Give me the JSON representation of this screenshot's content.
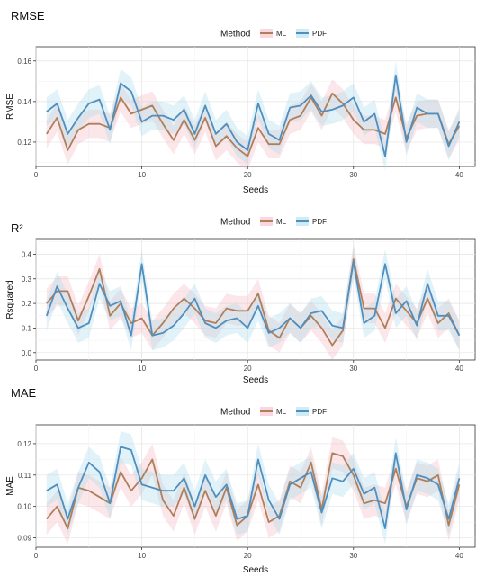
{
  "colors": {
    "ML": "#b07f5a",
    "PDF": "#4f8fbf",
    "ML_band": "#f4b7c4",
    "PDF_band": "#a8dceb"
  },
  "chart_data": [
    {
      "type": "line",
      "title": "RMSE",
      "xlabel": "Seeds",
      "ylabel": "RMSE",
      "legend_title": "Method",
      "legend_position": "top",
      "grid": true,
      "xlim": [
        0,
        41.5
      ],
      "ylim": [
        0.108,
        0.167
      ],
      "x_ticks": [
        0,
        10,
        20,
        30,
        40
      ],
      "y_ticks": [
        0.12,
        0.14,
        0.16
      ],
      "y_tick_labels": [
        "0.12",
        "0.14",
        "0.16"
      ],
      "x": [
        1,
        2,
        3,
        4,
        5,
        6,
        7,
        8,
        9,
        10,
        11,
        12,
        13,
        14,
        15,
        16,
        17,
        18,
        19,
        20,
        21,
        22,
        23,
        24,
        25,
        26,
        27,
        28,
        29,
        30,
        31,
        32,
        33,
        34,
        35,
        36,
        37,
        38,
        39,
        40
      ],
      "band_width": 0.007,
      "series": [
        {
          "name": "ML",
          "values": [
            0.124,
            0.132,
            0.116,
            0.126,
            0.129,
            0.129,
            0.127,
            0.142,
            0.134,
            0.136,
            0.138,
            0.129,
            0.121,
            0.131,
            0.121,
            0.132,
            0.118,
            0.123,
            0.117,
            0.113,
            0.127,
            0.119,
            0.119,
            0.131,
            0.133,
            0.142,
            0.133,
            0.144,
            0.139,
            0.131,
            0.126,
            0.126,
            0.124,
            0.142,
            0.122,
            0.133,
            0.134,
            0.134,
            0.119,
            0.128
          ]
        },
        {
          "name": "PDF",
          "values": [
            0.135,
            0.139,
            0.124,
            0.132,
            0.139,
            0.141,
            0.126,
            0.149,
            0.145,
            0.13,
            0.133,
            0.133,
            0.131,
            0.136,
            0.124,
            0.138,
            0.124,
            0.129,
            0.12,
            0.116,
            0.139,
            0.124,
            0.121,
            0.137,
            0.138,
            0.143,
            0.135,
            0.136,
            0.138,
            0.142,
            0.13,
            0.134,
            0.113,
            0.153,
            0.12,
            0.137,
            0.134,
            0.134,
            0.118,
            0.13
          ]
        }
      ]
    },
    {
      "type": "line",
      "title": "R²",
      "xlabel": "Seeds",
      "ylabel": "Rsquared",
      "legend_title": "Method",
      "legend_position": "top",
      "grid": true,
      "xlim": [
        0,
        41.5
      ],
      "ylim": [
        -0.03,
        0.46
      ],
      "x_ticks": [
        0,
        10,
        20,
        30,
        40
      ],
      "y_ticks": [
        0.0,
        0.1,
        0.2,
        0.3,
        0.4
      ],
      "y_tick_labels": [
        "0.0",
        "0.1",
        "0.2",
        "0.3",
        "0.4"
      ],
      "x": [
        1,
        2,
        3,
        4,
        5,
        6,
        7,
        8,
        9,
        10,
        11,
        12,
        13,
        14,
        15,
        16,
        17,
        18,
        19,
        20,
        21,
        22,
        23,
        24,
        25,
        26,
        27,
        28,
        29,
        30,
        31,
        32,
        33,
        34,
        35,
        36,
        37,
        38,
        39,
        40
      ],
      "band_width": 0.06,
      "series": [
        {
          "name": "ML",
          "values": [
            0.2,
            0.25,
            0.25,
            0.13,
            0.23,
            0.34,
            0.15,
            0.2,
            0.12,
            0.14,
            0.07,
            0.12,
            0.18,
            0.22,
            0.18,
            0.13,
            0.12,
            0.18,
            0.17,
            0.17,
            0.24,
            0.09,
            0.06,
            0.14,
            0.1,
            0.15,
            0.1,
            0.03,
            0.09,
            0.38,
            0.18,
            0.18,
            0.1,
            0.22,
            0.17,
            0.12,
            0.22,
            0.12,
            0.16,
            0.07
          ]
        },
        {
          "name": "PDF",
          "values": [
            0.15,
            0.27,
            0.18,
            0.1,
            0.12,
            0.28,
            0.19,
            0.21,
            0.07,
            0.36,
            0.07,
            0.08,
            0.11,
            0.16,
            0.22,
            0.12,
            0.1,
            0.13,
            0.14,
            0.1,
            0.19,
            0.08,
            0.1,
            0.14,
            0.1,
            0.16,
            0.17,
            0.11,
            0.1,
            0.37,
            0.12,
            0.15,
            0.36,
            0.16,
            0.21,
            0.11,
            0.28,
            0.15,
            0.15,
            0.07
          ]
        }
      ]
    },
    {
      "type": "line",
      "title": "MAE",
      "xlabel": "Seeds",
      "ylabel": "MAE",
      "legend_title": "Method",
      "legend_position": "top",
      "grid": true,
      "xlim": [
        0,
        41.5
      ],
      "ylim": [
        0.087,
        0.126
      ],
      "x_ticks": [
        0,
        10,
        20,
        30,
        40
      ],
      "y_ticks": [
        0.09,
        0.1,
        0.11,
        0.12
      ],
      "y_tick_labels": [
        "0.09",
        "0.10",
        "0.11",
        "0.12"
      ],
      "x": [
        1,
        2,
        3,
        4,
        5,
        6,
        7,
        8,
        9,
        10,
        11,
        12,
        13,
        14,
        15,
        16,
        17,
        18,
        19,
        20,
        21,
        22,
        23,
        24,
        25,
        26,
        27,
        28,
        29,
        30,
        31,
        32,
        33,
        34,
        35,
        36,
        37,
        38,
        39,
        40
      ],
      "band_width": 0.005,
      "series": [
        {
          "name": "ML",
          "values": [
            0.096,
            0.1,
            0.093,
            0.106,
            0.105,
            0.103,
            0.101,
            0.111,
            0.105,
            0.109,
            0.115,
            0.102,
            0.097,
            0.106,
            0.096,
            0.105,
            0.097,
            0.106,
            0.094,
            0.097,
            0.107,
            0.095,
            0.097,
            0.108,
            0.106,
            0.114,
            0.099,
            0.117,
            0.116,
            0.11,
            0.101,
            0.102,
            0.101,
            0.112,
            0.1,
            0.109,
            0.108,
            0.11,
            0.094,
            0.107
          ]
        },
        {
          "name": "PDF",
          "values": [
            0.105,
            0.107,
            0.096,
            0.106,
            0.114,
            0.111,
            0.101,
            0.119,
            0.118,
            0.107,
            0.106,
            0.105,
            0.105,
            0.109,
            0.1,
            0.11,
            0.103,
            0.107,
            0.096,
            0.097,
            0.115,
            0.102,
            0.096,
            0.107,
            0.109,
            0.111,
            0.098,
            0.109,
            0.108,
            0.112,
            0.104,
            0.106,
            0.093,
            0.117,
            0.099,
            0.11,
            0.109,
            0.107,
            0.096,
            0.109
          ]
        }
      ]
    }
  ]
}
